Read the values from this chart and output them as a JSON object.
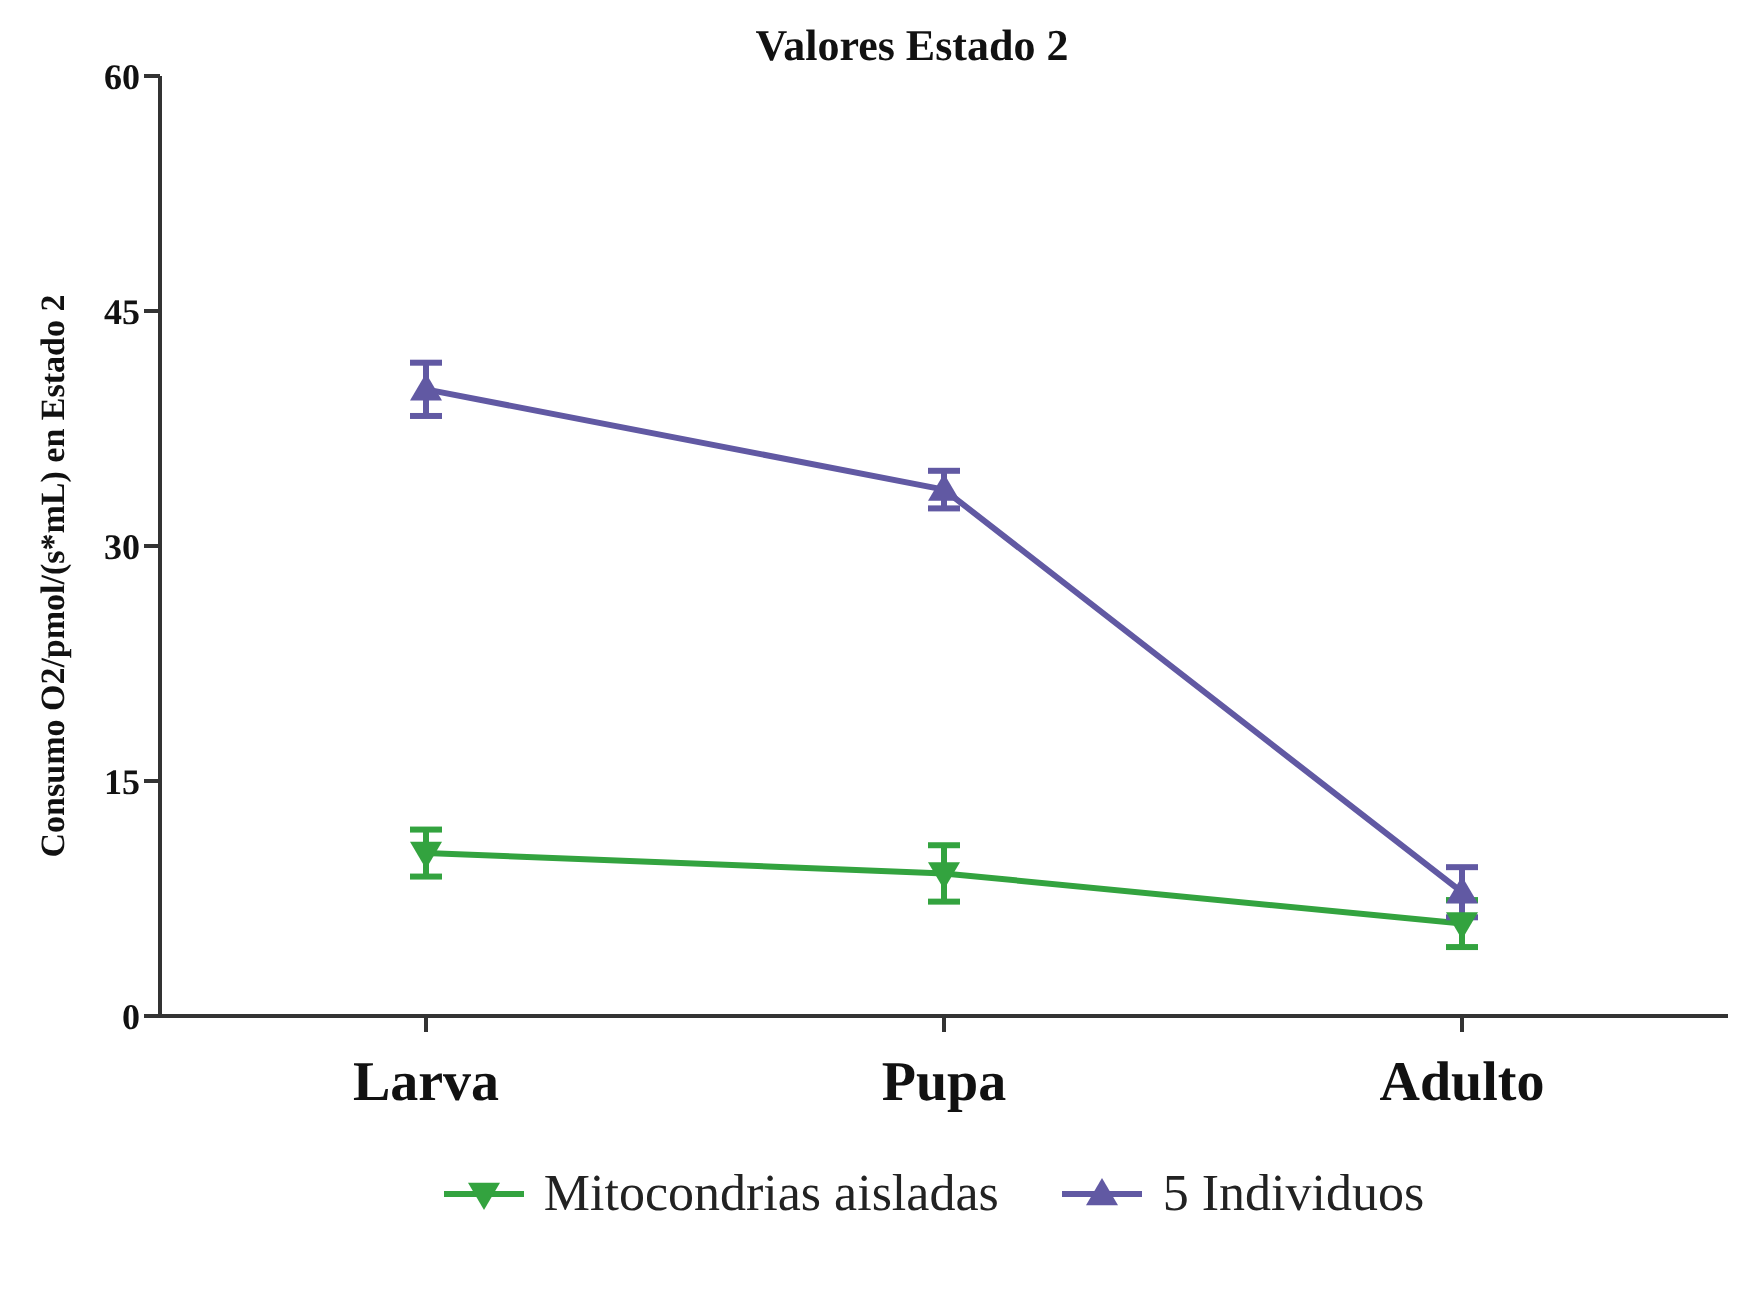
{
  "chart_data": {
    "type": "line",
    "title": "Valores Estado 2",
    "ylabel": "Consumo O2/pmol/(s*mL) en Estado 2",
    "categories": [
      "Larva",
      "Pupa",
      "Adulto"
    ],
    "series": [
      {
        "name": "Mitocondrias aisladas",
        "color": "#33a33f",
        "values": [
          10.4,
          9.1,
          5.9
        ],
        "errors": [
          1.5,
          1.8,
          1.5
        ]
      },
      {
        "name": "5 Individuos",
        "color": "#6159a3",
        "values": [
          40.0,
          33.6,
          7.9
        ],
        "errors": [
          1.7,
          1.2,
          1.6
        ]
      }
    ],
    "ylim": [
      0,
      60
    ],
    "yticks": [
      0,
      15,
      30,
      45,
      60
    ],
    "legend": "bottom",
    "marker": "triangle",
    "line_style": "solid"
  }
}
